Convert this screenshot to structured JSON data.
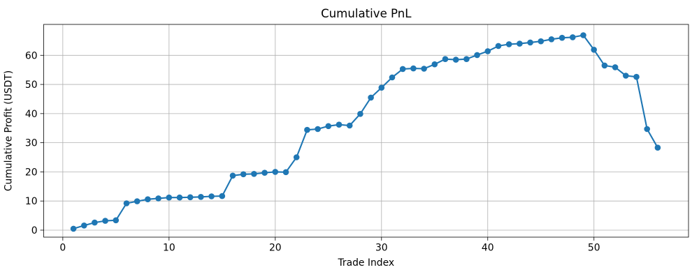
{
  "chart_data": {
    "type": "line",
    "title": "Cumulative PnL",
    "xlabel": "Trade Index",
    "ylabel": "Cumulative Profit (USDT)",
    "series": [
      {
        "name": "cumulative-pnl",
        "x": [
          1,
          2,
          3,
          4,
          5,
          6,
          7,
          8,
          9,
          10,
          11,
          12,
          13,
          14,
          15,
          16,
          17,
          18,
          19,
          20,
          21,
          22,
          23,
          24,
          25,
          26,
          27,
          28,
          29,
          30,
          31,
          32,
          33,
          34,
          35,
          36,
          37,
          38,
          39,
          40,
          41,
          42,
          43,
          44,
          45,
          46,
          47,
          48,
          49,
          50,
          51,
          52,
          53,
          54,
          55,
          56
        ],
        "y": [
          0.5,
          1.6,
          2.6,
          3.2,
          3.4,
          9.2,
          9.9,
          10.6,
          10.9,
          11.2,
          11.2,
          11.3,
          11.4,
          11.6,
          11.7,
          18.7,
          19.2,
          19.3,
          19.7,
          20.0,
          19.9,
          25.0,
          34.4,
          34.7,
          35.7,
          36.2,
          35.9,
          39.9,
          45.5,
          48.9,
          52.4,
          55.3,
          55.5,
          55.4,
          56.9,
          58.7,
          58.5,
          58.7,
          60.1,
          61.4,
          63.2,
          63.8,
          64.0,
          64.4,
          64.8,
          65.5,
          66.0,
          66.2,
          66.9,
          61.9,
          56.5,
          55.9,
          53.0,
          52.6,
          34.7,
          28.3
        ]
      }
    ],
    "x_ticks": [
      0,
      10,
      20,
      30,
      40,
      50
    ],
    "y_ticks": [
      0,
      10,
      20,
      30,
      40,
      50,
      60
    ],
    "xlim": [
      -1.8,
      58.9
    ],
    "ylim": [
      -2.4,
      70.6
    ],
    "grid": true,
    "legend_position": "none",
    "colors": {
      "line": "#1f77b4",
      "marker": "#1f77b4",
      "grid": "#b0b0b0",
      "spine": "#000000",
      "background": "#ffffff"
    }
  }
}
